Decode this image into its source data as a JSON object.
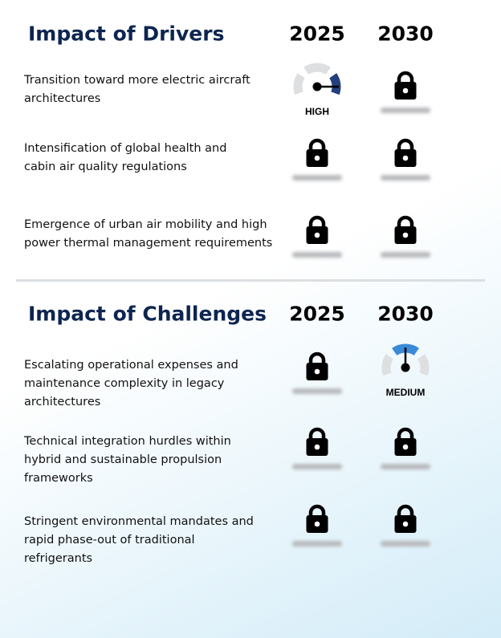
{
  "sections": [
    {
      "title": "Impact of Drivers",
      "years": [
        "2025",
        "2030"
      ],
      "rows": [
        {
          "lines": [
            "Transition toward more electric aircraft",
            "architectures"
          ],
          "cells": [
            {
              "label": "HIGH",
              "color": "#233f7d",
              "segment": "right"
            },
            null
          ]
        },
        {
          "lines": [
            "Intensification of global health and",
            "cabin air quality regulations"
          ],
          "cells": [
            null,
            null
          ]
        },
        {
          "lines": [
            "Emergence of urban air mobility and high",
            "power thermal management requirements"
          ],
          "cells": [
            null,
            null
          ]
        }
      ]
    },
    {
      "title": "Impact of Challenges",
      "years": [
        "2025",
        "2030"
      ],
      "rows": [
        {
          "lines": [
            "Escalating operational expenses and",
            "maintenance complexity in legacy",
            "architectures"
          ],
          "cells": [
            null,
            {
              "label": "MEDIUM",
              "color": "#3a8ad8",
              "segment": "top"
            }
          ]
        },
        {
          "lines": [
            "Technical integration hurdles within",
            "hybrid and sustainable propulsion",
            "frameworks"
          ],
          "cells": [
            null,
            null
          ]
        },
        {
          "lines": [
            "Stringent environmental mandates and",
            "rapid phase-out of traditional",
            "refrigerants"
          ],
          "cells": [
            null,
            null
          ]
        }
      ]
    }
  ]
}
